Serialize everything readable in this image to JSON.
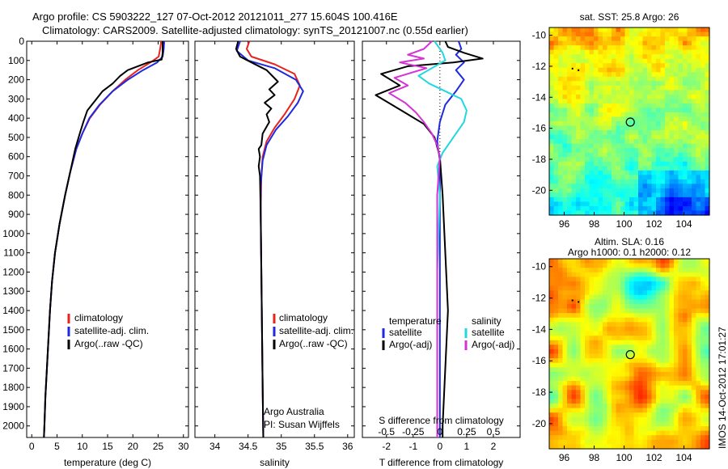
{
  "title": {
    "line1": "Argo profile: CS 5903222_127 07-Oct-2012 20121011_277 15.604S 100.416E",
    "line2": "Climatology: CARS2009. Satellite-adjusted climatology: synTS_20121007.nc (0.55d earlier)"
  },
  "colors": {
    "climatology": "#e8231f",
    "satellite": "#1f2ae0",
    "argo": "#000000",
    "s_satellite": "#22d8e0",
    "s_argo": "#d633d6"
  },
  "sidebar_stamp": "IMOS 14-Oct-2012 17:01:27",
  "chart_data": [
    {
      "id": "temperature",
      "type": "line",
      "xlabel": "temperature (deg C)",
      "ylabel": "",
      "xlim": [
        -1,
        31
      ],
      "ylim": [
        0,
        2060
      ],
      "xticks": [
        0,
        5,
        10,
        15,
        20,
        25,
        30
      ],
      "xtick_labels": [
        "0",
        "5",
        "10",
        "15",
        "20",
        "25",
        "30"
      ],
      "yticks": [
        0,
        100,
        200,
        300,
        400,
        500,
        600,
        700,
        800,
        900,
        1000,
        1100,
        1200,
        1300,
        1400,
        1500,
        1600,
        1700,
        1800,
        1900,
        2000
      ],
      "ytick_labels": [
        "0",
        "100",
        "200",
        "300",
        "400",
        "500",
        "600",
        "700",
        "800",
        "900",
        "1000",
        "1100",
        "1200",
        "1300",
        "1400",
        "1500",
        "1600",
        "1700",
        "1800",
        "1900",
        "2000"
      ],
      "legend": [
        "climatology",
        "satellite-adj. clim.",
        "Argo(..raw -QC)"
      ],
      "series": [
        {
          "name": "climatology",
          "color_key": "climatology",
          "points": [
            [
              25.6,
              0
            ],
            [
              25.4,
              40
            ],
            [
              25.1,
              80
            ],
            [
              23.5,
              110
            ],
            [
              21.0,
              150
            ],
            [
              18.5,
              200
            ],
            [
              16.0,
              260
            ],
            [
              13.5,
              330
            ],
            [
              11.5,
              400
            ],
            [
              10.0,
              480
            ],
            [
              8.8,
              560
            ],
            [
              7.6,
              680
            ],
            [
              6.6,
              800
            ],
            [
              5.5,
              950
            ],
            [
              4.6,
              1100
            ],
            [
              4.0,
              1250
            ],
            [
              3.6,
              1400
            ],
            [
              3.3,
              1550
            ],
            [
              3.0,
              1700
            ],
            [
              2.7,
              1850
            ],
            [
              2.5,
              2000
            ],
            [
              2.4,
              2060
            ]
          ]
        },
        {
          "name": "satellite-adj. clim.",
          "color_key": "satellite",
          "points": [
            [
              26.2,
              0
            ],
            [
              26.1,
              40
            ],
            [
              25.9,
              80
            ],
            [
              24.8,
              110
            ],
            [
              22.0,
              150
            ],
            [
              19.0,
              200
            ],
            [
              16.0,
              260
            ],
            [
              13.4,
              330
            ],
            [
              11.4,
              400
            ],
            [
              10.0,
              480
            ],
            [
              8.8,
              560
            ],
            [
              7.6,
              680
            ],
            [
              6.6,
              800
            ],
            [
              5.5,
              950
            ],
            [
              4.6,
              1100
            ],
            [
              4.0,
              1250
            ],
            [
              3.6,
              1400
            ],
            [
              3.3,
              1550
            ],
            [
              3.0,
              1700
            ],
            [
              2.7,
              1850
            ],
            [
              2.5,
              2000
            ],
            [
              2.4,
              2060
            ]
          ]
        },
        {
          "name": "Argo(..raw -QC)",
          "color_key": "argo",
          "points": [
            [
              25.9,
              0
            ],
            [
              25.9,
              60
            ],
            [
              25.7,
              95
            ],
            [
              23.0,
              110
            ],
            [
              19.0,
              150
            ],
            [
              17.5,
              180
            ],
            [
              16.0,
              220
            ],
            [
              14.0,
              260
            ],
            [
              12.5,
              310
            ],
            [
              11.0,
              360
            ],
            [
              10.2,
              420
            ],
            [
              9.5,
              480
            ],
            [
              8.6,
              560
            ],
            [
              7.6,
              680
            ],
            [
              6.6,
              800
            ],
            [
              5.5,
              950
            ],
            [
              4.6,
              1100
            ],
            [
              4.0,
              1250
            ],
            [
              3.6,
              1400
            ],
            [
              3.3,
              1550
            ],
            [
              3.0,
              1700
            ],
            [
              2.7,
              1850
            ],
            [
              2.5,
              2000
            ],
            [
              2.4,
              2060
            ]
          ]
        }
      ]
    },
    {
      "id": "salinity",
      "type": "line",
      "xlabel": "salinity",
      "ylabel": "",
      "xlim": [
        33.7,
        36.1
      ],
      "ylim": [
        0,
        2060
      ],
      "xticks": [
        34,
        34.5,
        35,
        35.5,
        36
      ],
      "xtick_labels": [
        "34",
        "34.5",
        "35",
        "35.5",
        "36"
      ],
      "legend": [
        "climatology",
        "satellite-adj. clim.",
        "Argo(..raw -QC)"
      ],
      "annotation": [
        "Argo Australia",
        "PI: Susan Wijffels"
      ],
      "series": [
        {
          "name": "climatology",
          "color_key": "climatology",
          "points": [
            [
              34.52,
              0
            ],
            [
              34.48,
              40
            ],
            [
              34.55,
              80
            ],
            [
              34.9,
              120
            ],
            [
              35.2,
              170
            ],
            [
              35.28,
              230
            ],
            [
              35.2,
              300
            ],
            [
              35.05,
              380
            ],
            [
              34.9,
              450
            ],
            [
              34.78,
              520
            ],
            [
              34.72,
              600
            ],
            [
              34.7,
              700
            ],
            [
              34.69,
              900
            ],
            [
              34.7,
              1200
            ],
            [
              34.71,
              1500
            ],
            [
              34.72,
              1800
            ],
            [
              34.73,
              2060
            ]
          ]
        },
        {
          "name": "satellite-adj. clim.",
          "color_key": "satellite",
          "points": [
            [
              34.38,
              0
            ],
            [
              34.33,
              50
            ],
            [
              34.5,
              100
            ],
            [
              34.9,
              140
            ],
            [
              35.22,
              200
            ],
            [
              35.33,
              260
            ],
            [
              35.25,
              320
            ],
            [
              35.1,
              390
            ],
            [
              34.92,
              460
            ],
            [
              34.78,
              540
            ],
            [
              34.72,
              620
            ],
            [
              34.69,
              750
            ],
            [
              34.69,
              900
            ],
            [
              34.7,
              1200
            ],
            [
              34.71,
              1500
            ],
            [
              34.72,
              1800
            ],
            [
              34.73,
              2060
            ]
          ]
        },
        {
          "name": "Argo(..raw -QC)",
          "color_key": "argo",
          "points": [
            [
              34.35,
              0
            ],
            [
              34.32,
              40
            ],
            [
              34.38,
              80
            ],
            [
              34.55,
              110
            ],
            [
              34.78,
              150
            ],
            [
              34.95,
              210
            ],
            [
              34.82,
              250
            ],
            [
              34.9,
              280
            ],
            [
              34.75,
              320
            ],
            [
              34.85,
              350
            ],
            [
              34.78,
              380
            ],
            [
              34.82,
              420
            ],
            [
              34.72,
              480
            ],
            [
              34.7,
              540
            ],
            [
              34.66,
              560
            ],
            [
              34.68,
              600
            ],
            [
              34.66,
              650
            ],
            [
              34.68,
              700
            ],
            [
              34.69,
              900
            ],
            [
              34.7,
              1200
            ],
            [
              34.71,
              1500
            ],
            [
              34.72,
              1800
            ],
            [
              34.73,
              2060
            ]
          ]
        }
      ]
    },
    {
      "id": "difference",
      "type": "line",
      "xlabel": "T difference from climatology",
      "xlabel_top": "S difference from climatology",
      "xlim": [
        -2.9,
        3.0
      ],
      "ylim": [
        0,
        2060
      ],
      "xticks": [
        -2,
        -1,
        0,
        1,
        2
      ],
      "xtick_labels": [
        "-2",
        "-1",
        "0",
        "1",
        "2"
      ],
      "s_tick_labels": [
        "-0.5",
        "-0.25",
        "0",
        "0.25",
        "0.5"
      ],
      "s_tick_positions": [
        -2,
        -1,
        0,
        1,
        2
      ],
      "zero_line": 0,
      "legend_left_title": "temperature",
      "legend_right_title": "salinity",
      "legend_left": [
        "satellite",
        "Argo(-adj)"
      ],
      "legend_right": [
        "satellite",
        "Argo(-adj)"
      ],
      "series": [
        {
          "name": "T satellite",
          "color_key": "satellite",
          "points": [
            [
              0.7,
              0
            ],
            [
              0.8,
              40
            ],
            [
              0.6,
              70
            ],
            [
              0.9,
              110
            ],
            [
              0.6,
              150
            ],
            [
              0.9,
              200
            ],
            [
              0.6,
              260
            ],
            [
              0.2,
              330
            ],
            [
              0.0,
              420
            ],
            [
              -0.1,
              520
            ],
            [
              0.0,
              620
            ],
            [
              0.0,
              800
            ],
            [
              0.0,
              1200
            ],
            [
              0.0,
              1600
            ],
            [
              0.0,
              2060
            ]
          ]
        },
        {
          "name": "T Argo(-adj)",
          "color_key": "argo",
          "points": [
            [
              0.2,
              0
            ],
            [
              0.3,
              30
            ],
            [
              0.9,
              60
            ],
            [
              1.6,
              90
            ],
            [
              0.5,
              110
            ],
            [
              -1.2,
              130
            ],
            [
              -2.2,
              170
            ],
            [
              -1.5,
              230
            ],
            [
              -2.4,
              280
            ],
            [
              -1.8,
              330
            ],
            [
              -1.2,
              380
            ],
            [
              -0.6,
              430
            ],
            [
              -0.2,
              500
            ],
            [
              0.0,
              600
            ],
            [
              0.1,
              800
            ],
            [
              0.2,
              1100
            ],
            [
              0.3,
              1400
            ],
            [
              0.2,
              1700
            ],
            [
              0.1,
              2000
            ],
            [
              0.1,
              2060
            ]
          ]
        },
        {
          "name": "S satellite",
          "color_key": "s_satellite",
          "points": [
            [
              -0.2,
              0
            ],
            [
              0.1,
              60
            ],
            [
              0.2,
              100
            ],
            [
              -0.3,
              140
            ],
            [
              -0.8,
              180
            ],
            [
              -0.4,
              220
            ],
            [
              0.2,
              260
            ],
            [
              0.8,
              300
            ],
            [
              1.0,
              360
            ],
            [
              0.9,
              420
            ],
            [
              0.5,
              500
            ],
            [
              0.1,
              580
            ],
            [
              -0.1,
              650
            ],
            [
              0.0,
              800
            ],
            [
              -0.1,
              1200
            ],
            [
              -0.1,
              1600
            ],
            [
              -0.1,
              2060
            ]
          ]
        },
        {
          "name": "S Argo(-adj)",
          "color_key": "s_argo",
          "points": [
            [
              -0.3,
              0
            ],
            [
              -0.6,
              40
            ],
            [
              -1.2,
              70
            ],
            [
              -0.6,
              90
            ],
            [
              -1.5,
              110
            ],
            [
              -0.5,
              140
            ],
            [
              -1.7,
              190
            ],
            [
              -1.2,
              230
            ],
            [
              -1.9,
              270
            ],
            [
              -1.3,
              320
            ],
            [
              -0.9,
              370
            ],
            [
              -0.6,
              420
            ],
            [
              -0.3,
              480
            ],
            [
              -0.1,
              540
            ],
            [
              0.0,
              600
            ],
            [
              -0.1,
              800
            ],
            [
              -0.1,
              1200
            ],
            [
              -0.1,
              1600
            ],
            [
              -0.1,
              2060
            ]
          ]
        }
      ]
    },
    {
      "id": "sst_map",
      "type": "heatmap",
      "title": "sat. SST: 25.8  Argo: 26",
      "xlim": [
        95,
        105.7
      ],
      "ylim": [
        -21.6,
        -9.5
      ],
      "xticks": [
        96,
        98,
        100,
        102,
        104
      ],
      "xtick_labels": [
        "96",
        "98",
        "100",
        "102",
        "104"
      ],
      "yticks": [
        -10,
        -12,
        -14,
        -16,
        -18,
        -20
      ],
      "ytick_labels": [
        "-10",
        "-12",
        "-14",
        "-16",
        "-18",
        "-20"
      ],
      "marker": {
        "lon": 100.416,
        "lat": -15.604
      }
    },
    {
      "id": "sla_map",
      "type": "heatmap",
      "title": "Altim. SLA: 0.16",
      "subtitle": "Argo h1000: 0.1  h2000: 0.12",
      "xlim": [
        95,
        105.7
      ],
      "ylim": [
        -21.6,
        -9.5
      ],
      "xticks": [
        96,
        98,
        100,
        102,
        104
      ],
      "xtick_labels": [
        "96",
        "98",
        "100",
        "102",
        "104"
      ],
      "yticks": [
        -10,
        -12,
        -14,
        -16,
        -18,
        -20
      ],
      "ytick_labels": [
        "-10",
        "-12",
        "-14",
        "-16",
        "-18",
        "-20"
      ],
      "marker": {
        "lon": 100.416,
        "lat": -15.604
      }
    }
  ]
}
